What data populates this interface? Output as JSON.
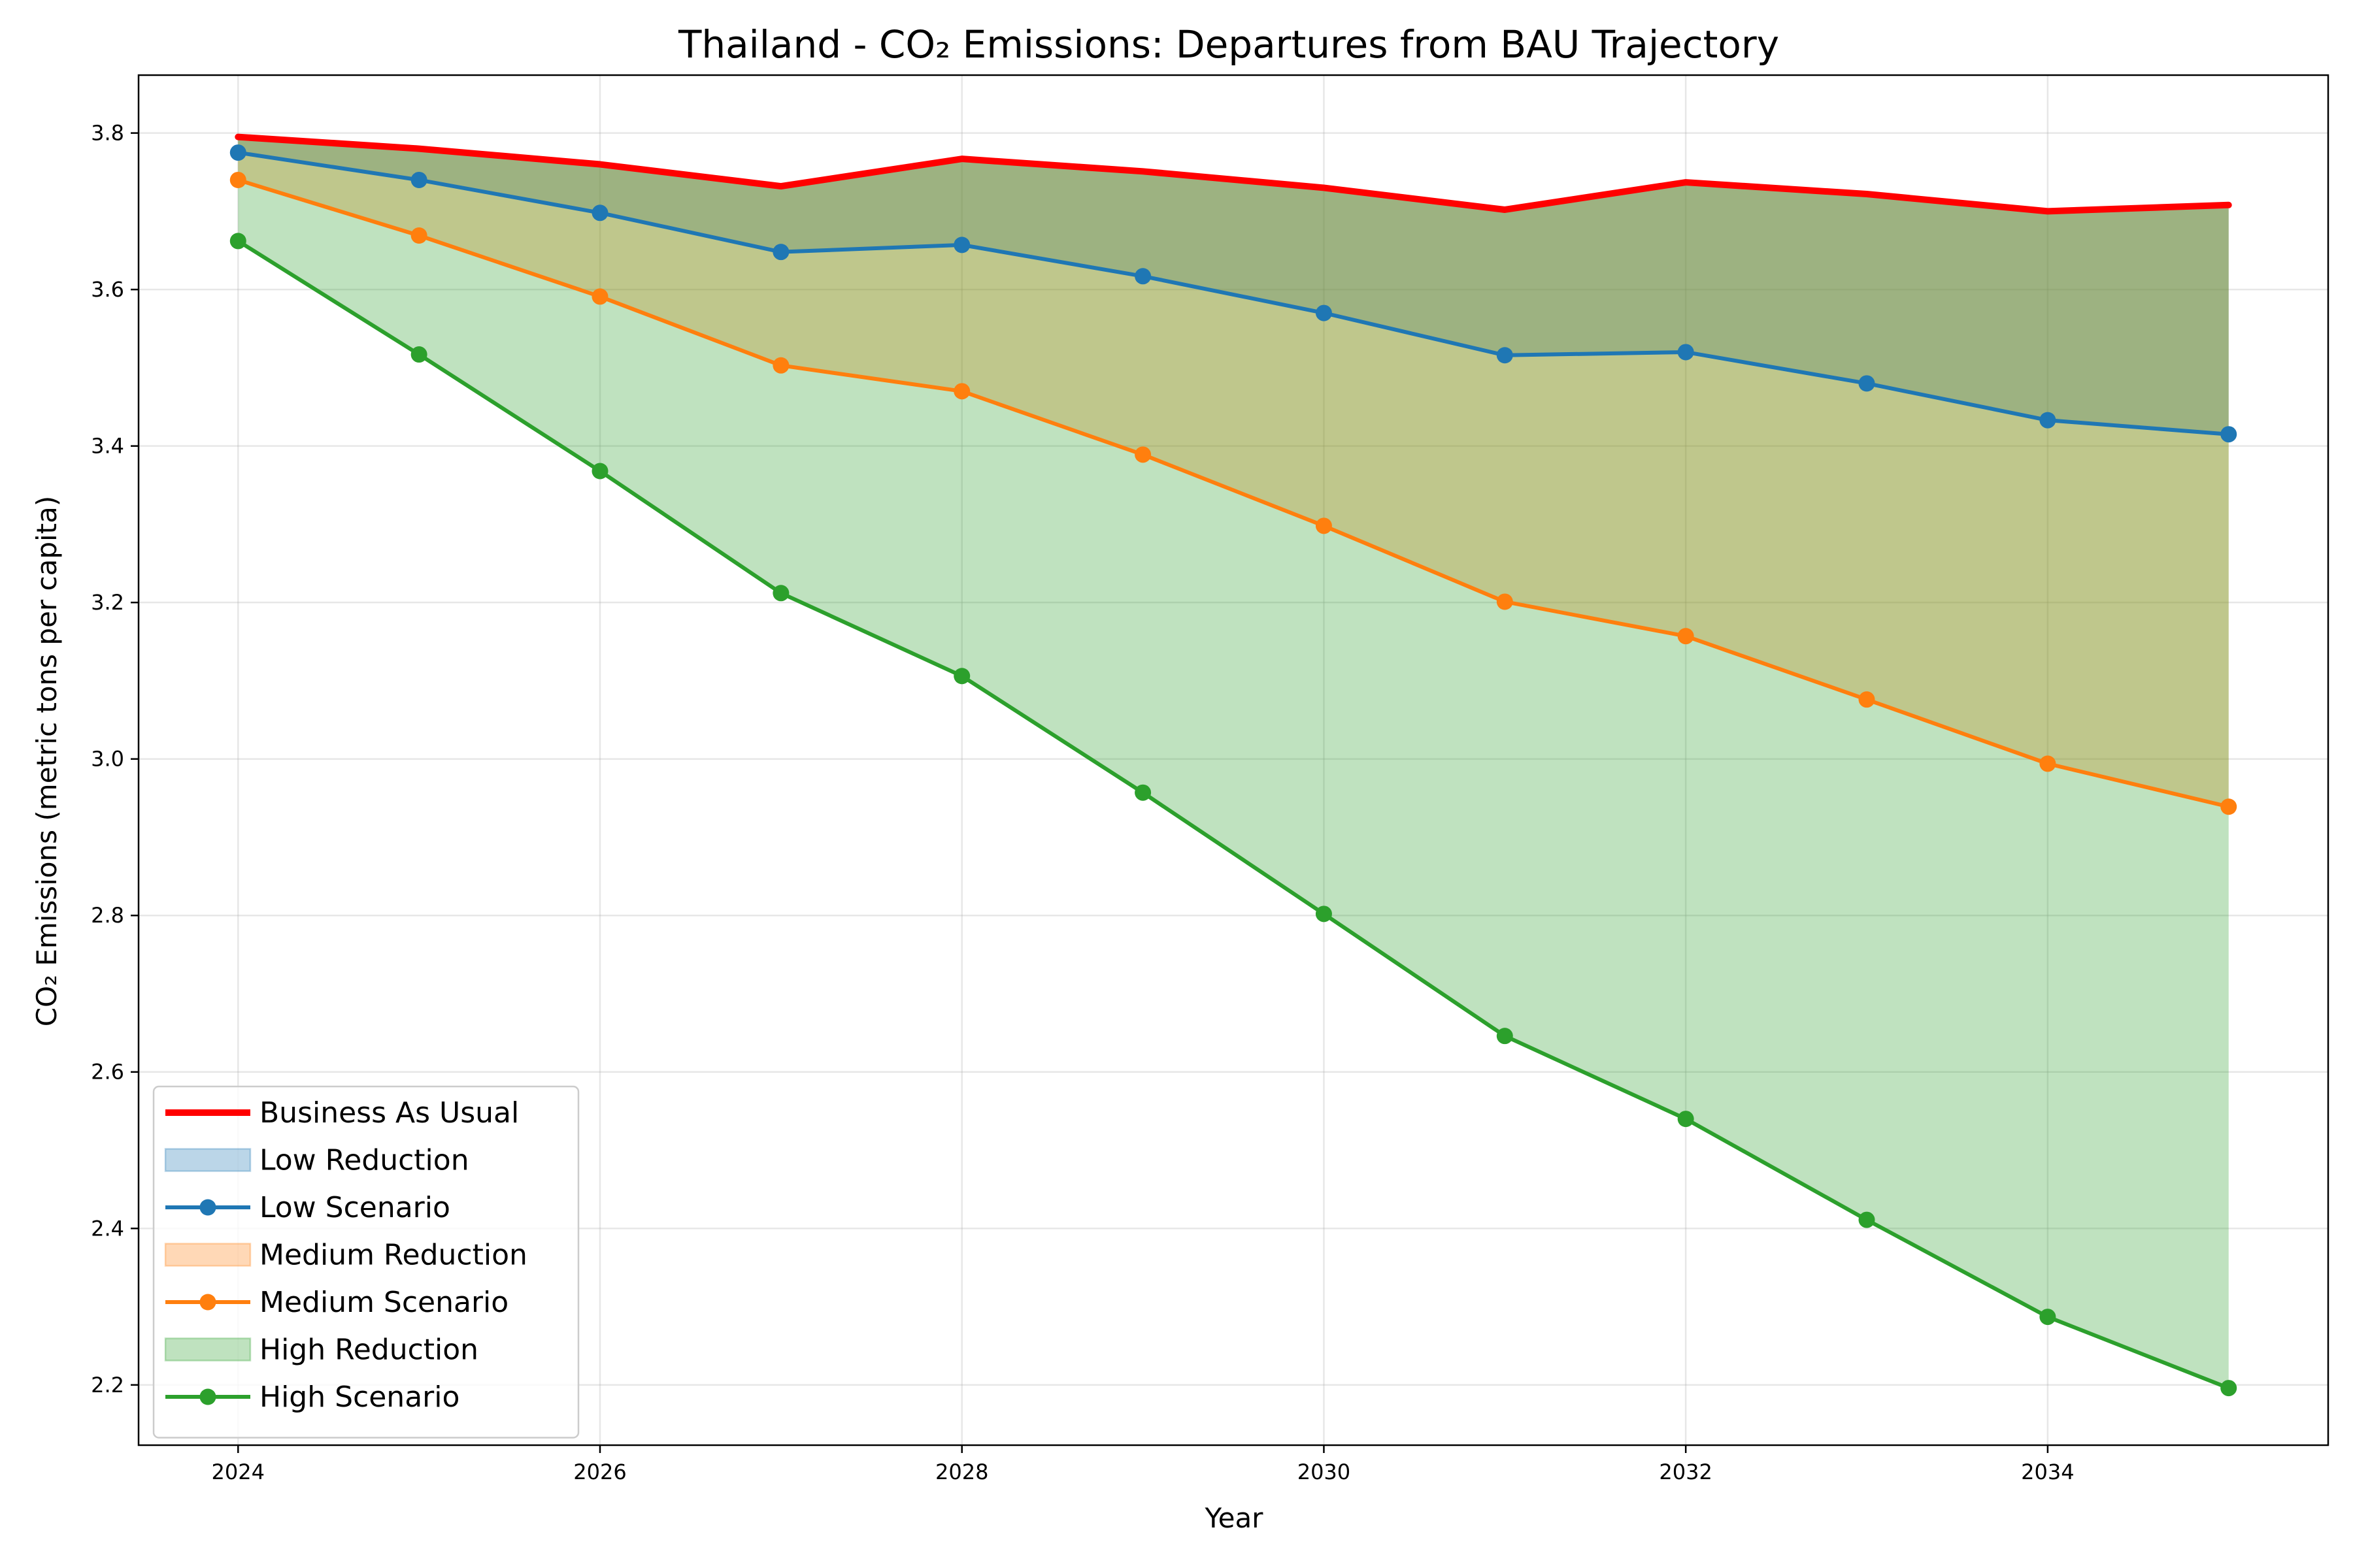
{
  "chart_data": {
    "type": "line",
    "title": "Thailand - CO₂ Emissions: Departures from BAU Trajectory",
    "xlabel": "Year",
    "ylabel": "CO₂ Emissions (metric tons per capita)",
    "x": [
      2024,
      2025,
      2026,
      2027,
      2028,
      2029,
      2030,
      2031,
      2032,
      2033,
      2034,
      2035
    ],
    "xlim": [
      2023.45,
      2035.55
    ],
    "ylim": [
      2.123,
      3.874
    ],
    "xticks": [
      2024,
      2026,
      2028,
      2030,
      2032,
      2034
    ],
    "yticks": [
      2.2,
      2.4,
      2.6,
      2.8,
      3.0,
      3.2,
      3.4,
      3.6,
      3.8
    ],
    "grid": true,
    "legend_position": "lower-left",
    "series": [
      {
        "name": "Business As Usual",
        "color": "#ff0000",
        "markers": false,
        "values": [
          3.795,
          3.78,
          3.76,
          3.732,
          3.767,
          3.751,
          3.73,
          3.702,
          3.737,
          3.722,
          3.7,
          3.708
        ]
      },
      {
        "name": "Low Scenario",
        "color": "#1f77b4",
        "markers": true,
        "values": [
          3.775,
          3.74,
          3.698,
          3.648,
          3.657,
          3.617,
          3.57,
          3.516,
          3.52,
          3.48,
          3.433,
          3.415
        ]
      },
      {
        "name": "Medium Scenario",
        "color": "#ff7f0e",
        "markers": true,
        "values": [
          3.74,
          3.669,
          3.591,
          3.503,
          3.47,
          3.389,
          3.298,
          3.201,
          3.157,
          3.076,
          2.994,
          2.939
        ]
      },
      {
        "name": "High Scenario",
        "color": "#2ca02c",
        "markers": true,
        "values": [
          3.662,
          3.517,
          3.368,
          3.212,
          3.106,
          2.957,
          2.802,
          2.646,
          2.54,
          2.411,
          2.287,
          2.196
        ]
      }
    ],
    "fills": [
      {
        "name": "Low Reduction",
        "color": "#1f77b4",
        "opacity": 0.3,
        "between": [
          "Business As Usual",
          "Low Scenario"
        ]
      },
      {
        "name": "Medium Reduction",
        "color": "#ff7f0e",
        "opacity": 0.3,
        "between": [
          "Business As Usual",
          "Medium Scenario"
        ]
      },
      {
        "name": "High Reduction",
        "color": "#2ca02c",
        "opacity": 0.3,
        "between": [
          "Business As Usual",
          "High Scenario"
        ]
      }
    ],
    "legend": [
      {
        "label": "Business As Usual",
        "kind": "line",
        "ref": "Business As Usual"
      },
      {
        "label": "Low Reduction",
        "kind": "patch",
        "ref": "Low Reduction"
      },
      {
        "label": "Low Scenario",
        "kind": "line-marker",
        "ref": "Low Scenario"
      },
      {
        "label": "Medium Reduction",
        "kind": "patch",
        "ref": "Medium Reduction"
      },
      {
        "label": "Medium Scenario",
        "kind": "line-marker",
        "ref": "Medium Scenario"
      },
      {
        "label": "High Reduction",
        "kind": "patch",
        "ref": "High Reduction"
      },
      {
        "label": "High Scenario",
        "kind": "line-marker",
        "ref": "High Scenario"
      }
    ]
  }
}
